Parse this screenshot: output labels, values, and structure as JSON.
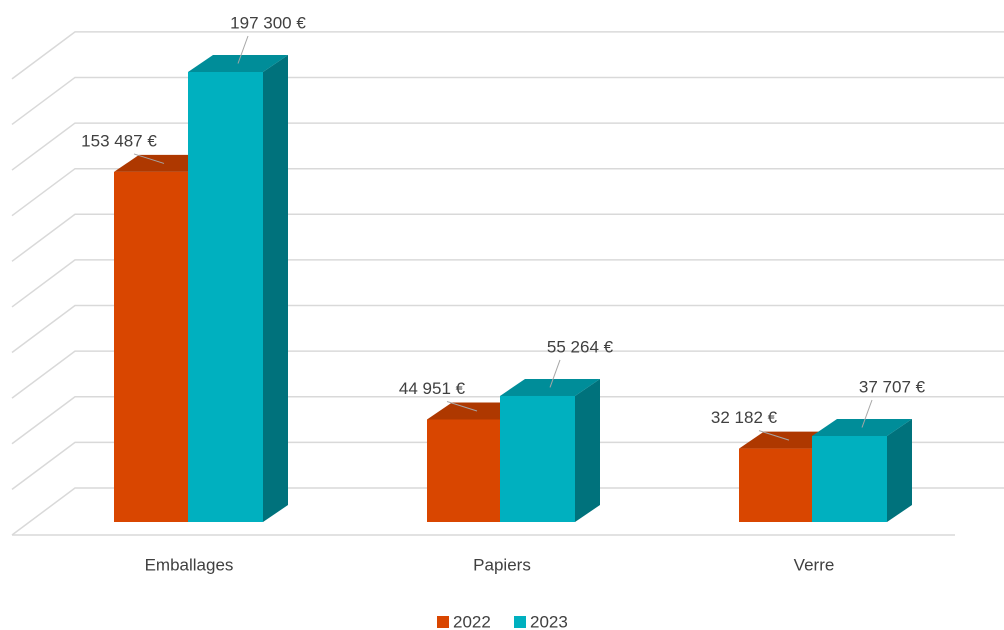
{
  "chart_data": {
    "type": "bar3d",
    "categories": [
      "Emballages",
      "Papiers",
      "Verre"
    ],
    "series": [
      {
        "name": "2022",
        "color": "#d94600",
        "values": [
          153487,
          44951,
          32182
        ],
        "value_labels": [
          "153 487 €",
          "44 951 €",
          "32 182 €"
        ]
      },
      {
        "name": "2023",
        "color": "#00b0bf",
        "values": [
          197300,
          55264,
          37707
        ],
        "value_labels": [
          "197 300 €",
          "55 264 €",
          "37 707 €"
        ]
      }
    ],
    "ylim": [
      0,
      200000
    ],
    "yticks": [
      0,
      20000,
      40000,
      60000,
      80000,
      100000,
      120000,
      140000,
      160000,
      180000,
      200000
    ],
    "grid": true,
    "legend": "bottom"
  }
}
